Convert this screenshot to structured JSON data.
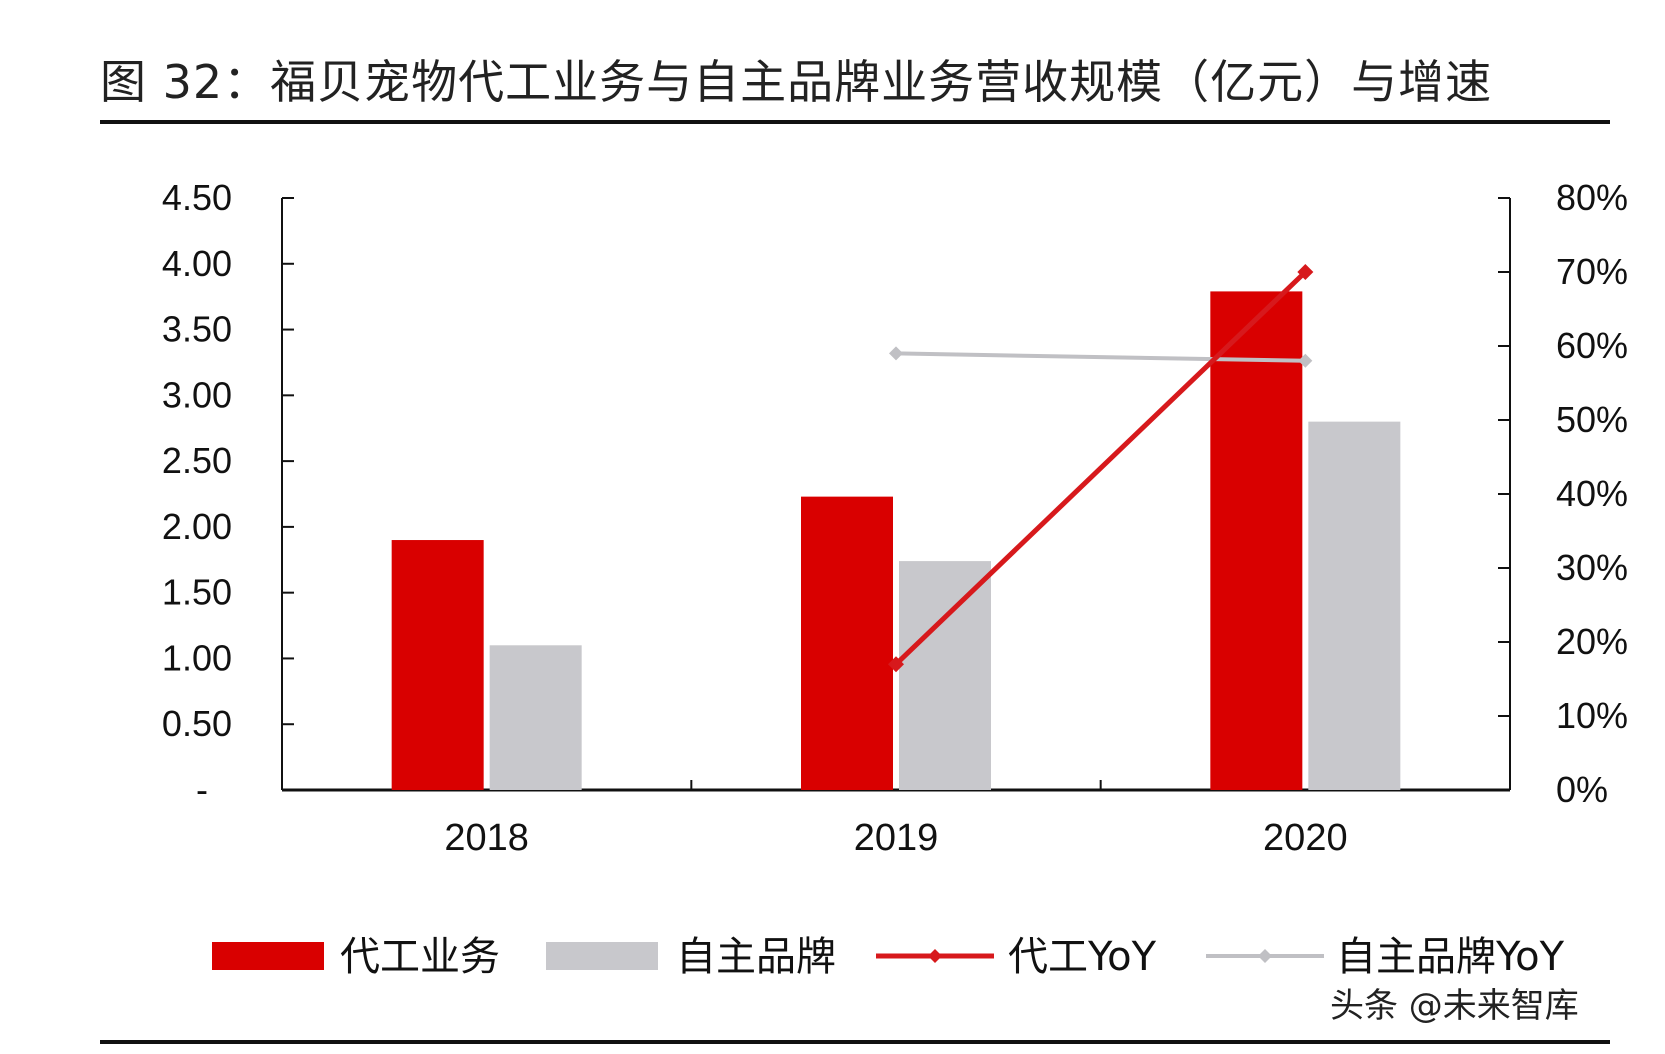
{
  "figure": {
    "title": "图 32：福贝宠物代工业务与自主品牌业务营收规模（亿元）与增速",
    "watermark": "头条 @未来智库"
  },
  "colors": {
    "oem": "#d90000",
    "own_brand": "#c8c8cc",
    "oem_yoy": "#d7191c",
    "own_brand_yoy": "#c0c0c4",
    "axis": "#111111"
  },
  "chart_data": {
    "type": "bar",
    "categories": [
      "2018",
      "2019",
      "2020"
    ],
    "series": [
      {
        "name": "代工业务",
        "kind": "bar",
        "axis": "left",
        "values": [
          1.9,
          2.23,
          3.79
        ]
      },
      {
        "name": "自主品牌",
        "kind": "bar",
        "axis": "left",
        "values": [
          1.1,
          1.74,
          2.8
        ]
      },
      {
        "name": "代工YoY",
        "kind": "line",
        "axis": "right",
        "values": [
          null,
          0.17,
          0.7
        ]
      },
      {
        "name": "自主品牌YoY",
        "kind": "line",
        "axis": "right",
        "values": [
          null,
          0.59,
          0.58
        ]
      }
    ],
    "y_left": {
      "min": 0,
      "max": 4.5,
      "ticks": [
        0,
        0.5,
        1.0,
        1.5,
        2.0,
        2.5,
        3.0,
        3.5,
        4.0,
        4.5
      ],
      "tick_labels": [
        "-",
        "0.50",
        "1.00",
        "1.50",
        "2.00",
        "2.50",
        "3.00",
        "3.50",
        "4.00",
        "4.50"
      ]
    },
    "y_right": {
      "min": 0,
      "max": 0.8,
      "ticks": [
        0,
        0.1,
        0.2,
        0.3,
        0.4,
        0.5,
        0.6,
        0.7,
        0.8
      ],
      "tick_labels": [
        "0%",
        "10%",
        "20%",
        "30%",
        "40%",
        "50%",
        "60%",
        "70%",
        "80%"
      ]
    },
    "grid": false,
    "legend": "bottom"
  }
}
